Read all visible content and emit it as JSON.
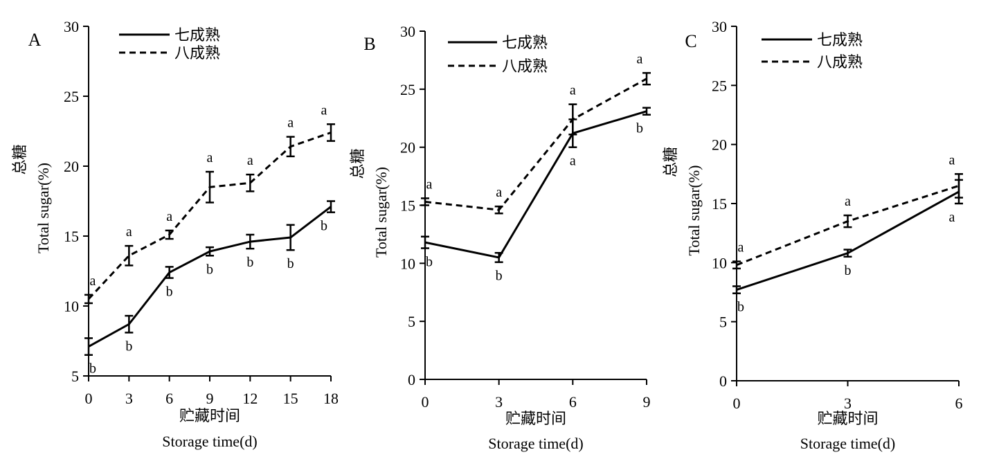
{
  "chart_data": [
    {
      "type": "line",
      "panel_label": "A",
      "x": [
        0,
        3,
        6,
        9,
        12,
        15,
        18
      ],
      "xlim": [
        0,
        18
      ],
      "ylim": [
        5,
        30
      ],
      "xticks": [
        "0",
        "3",
        "6",
        "9",
        "12",
        "15",
        "18"
      ],
      "yticks": [
        "5",
        "10",
        "15",
        "20",
        "25",
        "30"
      ],
      "xlabel_cn": "贮藏时间",
      "xlabel_en": "Storage time(d)",
      "ylabel_cn": "总糖",
      "ylabel_en": "Total sugar(%)",
      "legend_position": "top-left",
      "grid": false,
      "series": [
        {
          "name": "七成熟",
          "style": "solid",
          "values": [
            7.1,
            8.7,
            12.4,
            13.9,
            14.6,
            14.9,
            17.1
          ],
          "errors": [
            0.6,
            0.6,
            0.4,
            0.3,
            0.5,
            0.9,
            0.4
          ],
          "labels": [
            "b",
            "b",
            "b",
            "b",
            "b",
            "b",
            "b"
          ]
        },
        {
          "name": "八成熟",
          "style": "dashed",
          "values": [
            10.5,
            13.6,
            15.1,
            18.5,
            18.8,
            21.4,
            22.4
          ],
          "errors": [
            0.3,
            0.7,
            0.3,
            1.1,
            0.6,
            0.7,
            0.6
          ],
          "labels": [
            "a",
            "a",
            "a",
            "a",
            "a",
            "a",
            "a"
          ]
        }
      ]
    },
    {
      "type": "line",
      "panel_label": "B",
      "x": [
        0,
        3,
        6,
        9
      ],
      "xlim": [
        0,
        9
      ],
      "ylim": [
        0,
        30
      ],
      "xticks": [
        "0",
        "3",
        "6",
        "9"
      ],
      "yticks": [
        "0",
        "5",
        "10",
        "15",
        "20",
        "25",
        "30"
      ],
      "xlabel_cn": "贮藏时间",
      "xlabel_en": "Storage time(d)",
      "ylabel_cn": "总糖",
      "ylabel_en": "Total sugar(%)",
      "legend_position": "top-left",
      "grid": false,
      "series": [
        {
          "name": "七成熟",
          "style": "solid",
          "values": [
            11.8,
            10.5,
            21.2,
            23.1
          ],
          "errors": [
            0.5,
            0.4,
            1.2,
            0.3
          ],
          "labels": [
            "b",
            "b",
            "a",
            "b"
          ]
        },
        {
          "name": "八成熟",
          "style": "dashed",
          "values": [
            15.3,
            14.6,
            22.4,
            25.9
          ],
          "errors": [
            0.3,
            0.3,
            1.3,
            0.5
          ],
          "labels": [
            "a",
            "a",
            "a",
            "a"
          ]
        }
      ]
    },
    {
      "type": "line",
      "panel_label": "C",
      "x": [
        0,
        3,
        6
      ],
      "xlim": [
        0,
        6
      ],
      "ylim": [
        0,
        30
      ],
      "xticks": [
        "0",
        "3",
        "6"
      ],
      "yticks": [
        "0",
        "5",
        "10",
        "15",
        "20",
        "25",
        "30"
      ],
      "xlabel_cn": "贮藏时间",
      "xlabel_en": "Storage time(d)",
      "ylabel_cn": "总糖",
      "ylabel_en": "Total sugar(%)",
      "legend_position": "top-left",
      "grid": false,
      "series": [
        {
          "name": "七成熟",
          "style": "solid",
          "values": [
            7.7,
            10.8,
            16.0
          ],
          "errors": [
            0.3,
            0.3,
            1.0
          ],
          "labels": [
            "b",
            "b",
            "a"
          ]
        },
        {
          "name": "八成熟",
          "style": "dashed",
          "values": [
            9.8,
            13.5,
            16.5
          ],
          "errors": [
            0.3,
            0.5,
            1.0
          ],
          "labels": [
            "a",
            "a",
            "a"
          ]
        }
      ]
    }
  ]
}
